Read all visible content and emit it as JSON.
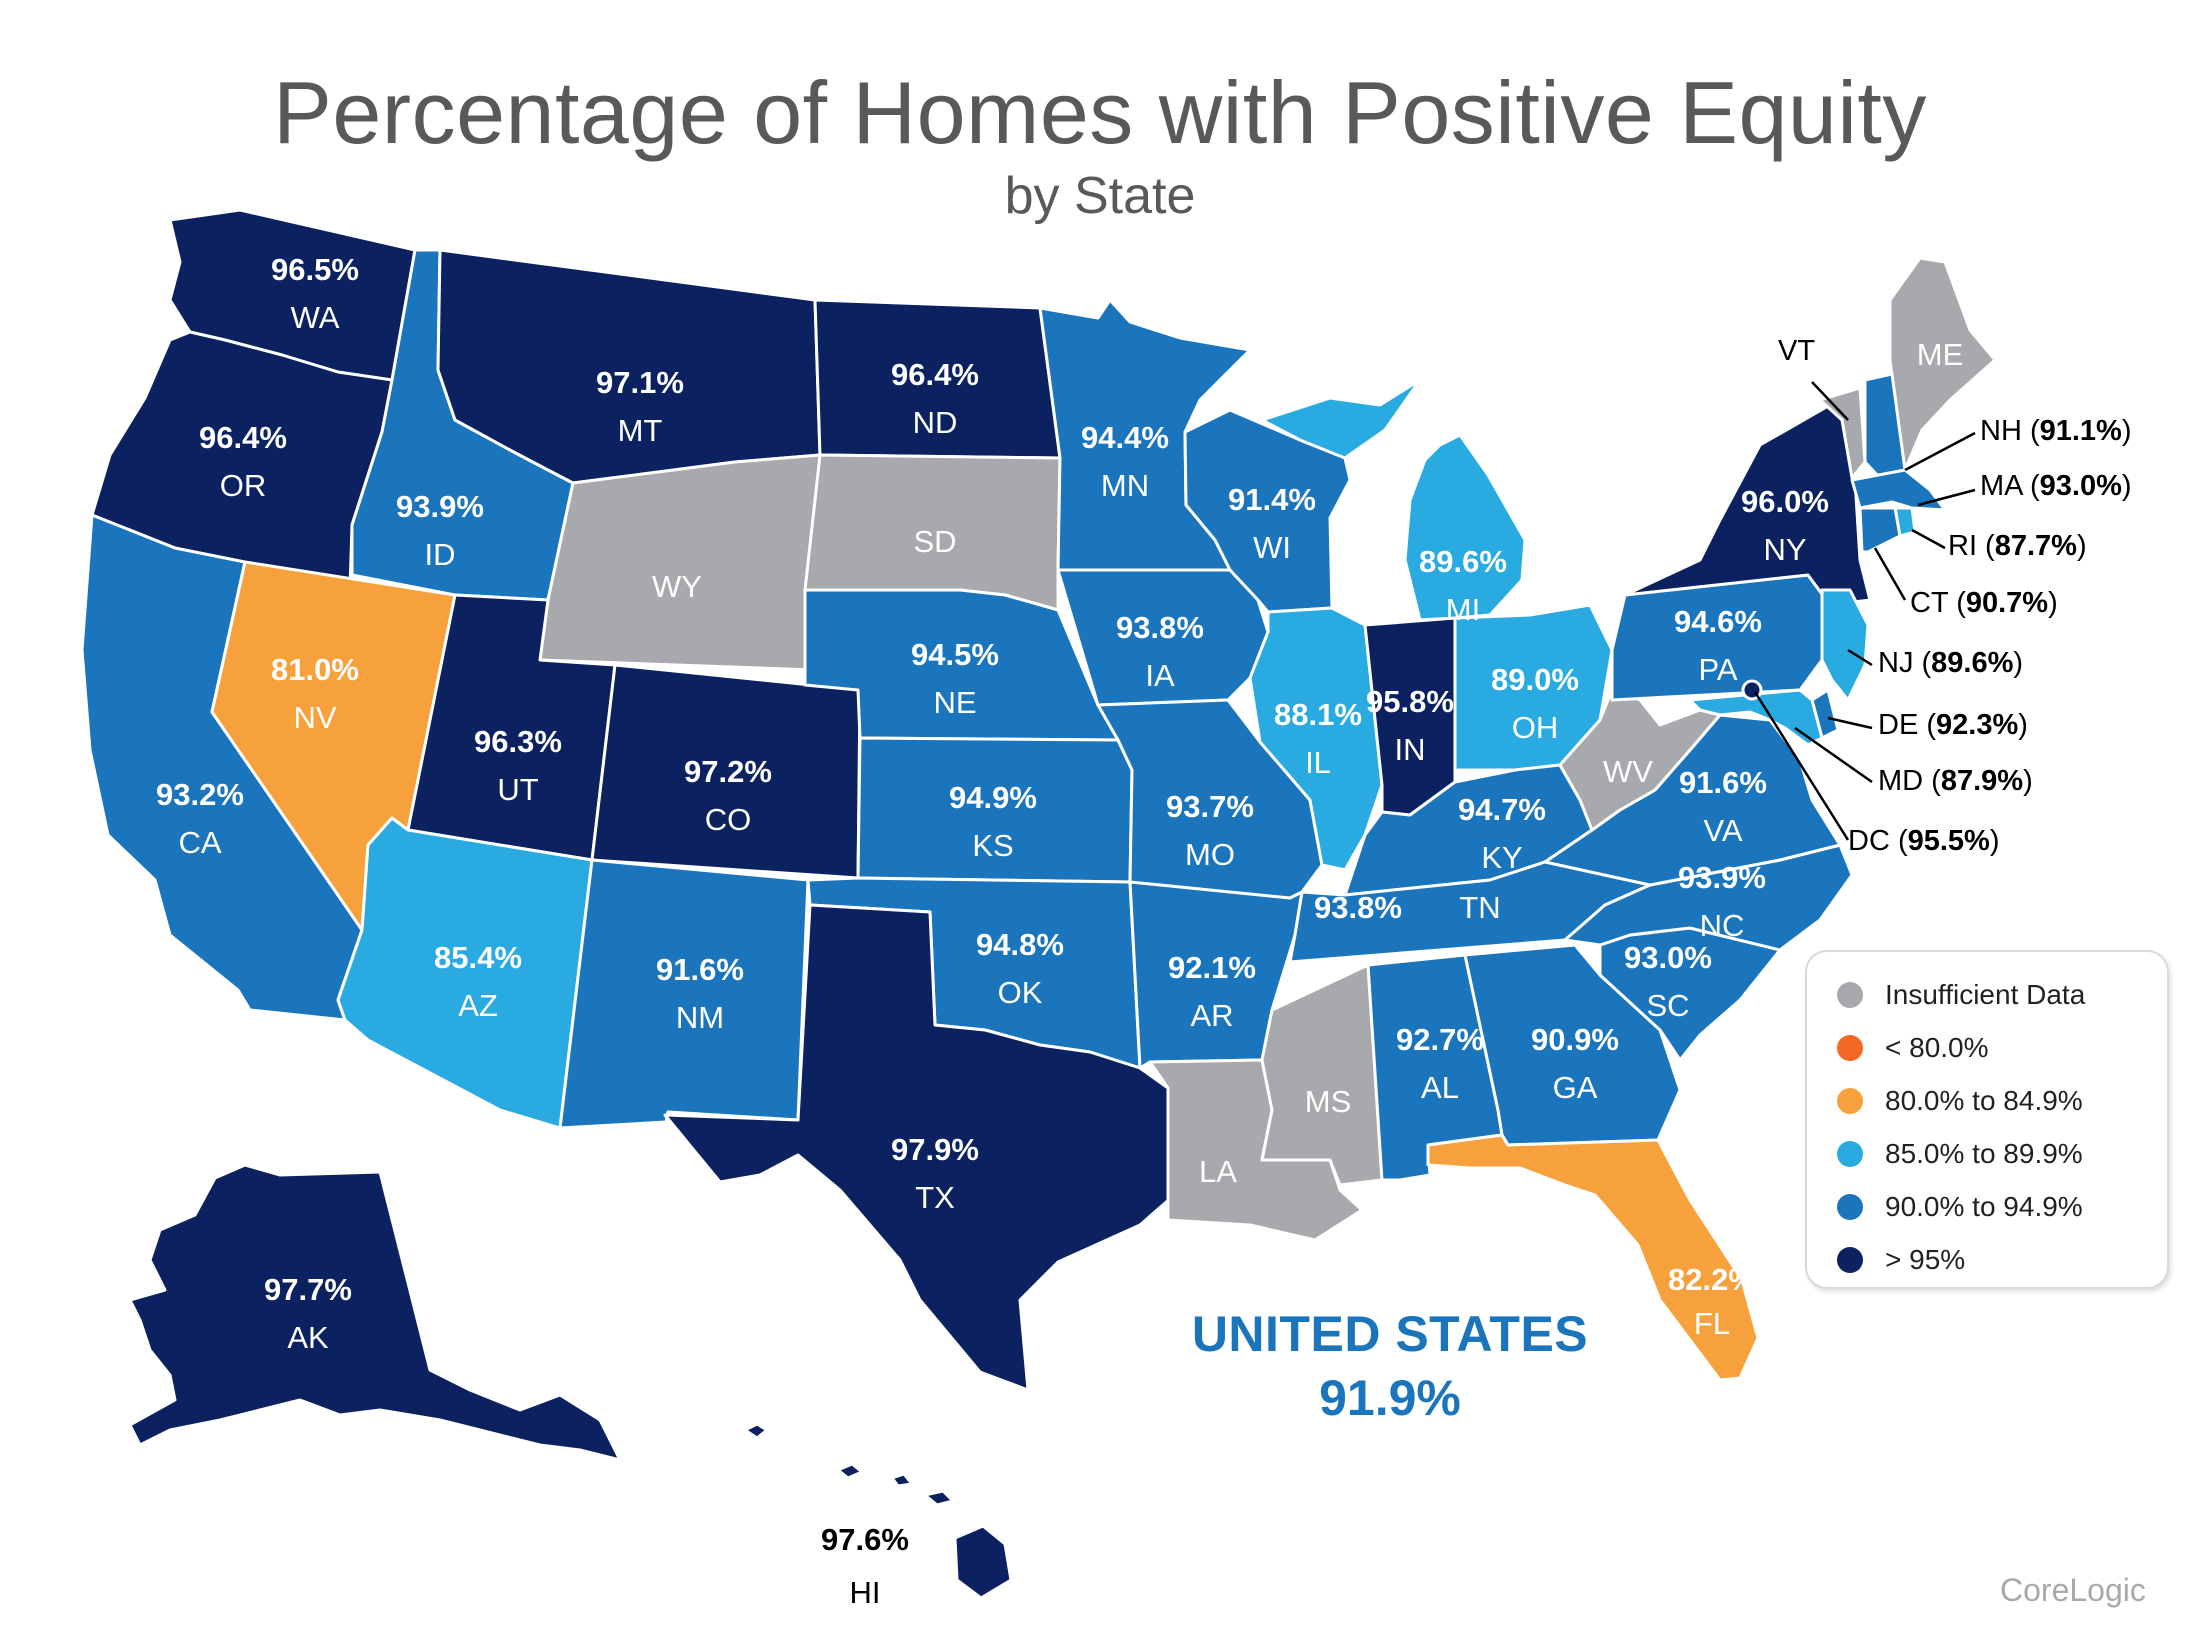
{
  "title": "Percentage of Homes with Positive Equity",
  "subtitle": "by State",
  "colors": {
    "insufficient": "#a7a9ac",
    "lt80": "#f26722",
    "r80_85": "#f7a13c",
    "r85_90": "#29aae1",
    "r90_95": "#1b75bc",
    "gt95": "#0b2160"
  },
  "legend": {
    "items": [
      {
        "label": "Insufficient Data",
        "color": "#a7a9ac"
      },
      {
        "label": "< 80.0%",
        "color": "#f26722"
      },
      {
        "label": "80.0% to 84.9%",
        "color": "#f7a13c"
      },
      {
        "label": "85.0% to 89.9%",
        "color": "#29aae1"
      },
      {
        "label": "90.0% to 94.9%",
        "color": "#1b75bc"
      },
      {
        "label": "> 95%",
        "color": "#0b2160"
      }
    ]
  },
  "states": {
    "WA": {
      "code": "WA",
      "value": "96.5%",
      "color": "#0b2160"
    },
    "OR": {
      "code": "OR",
      "value": "96.4%",
      "color": "#0b2160"
    },
    "CA": {
      "code": "CA",
      "value": "93.2%",
      "color": "#1b75bc"
    },
    "NV": {
      "code": "NV",
      "value": "81.0%",
      "color": "#f7a13c"
    },
    "ID": {
      "code": "ID",
      "value": "93.9%",
      "color": "#1b75bc"
    },
    "MT": {
      "code": "MT",
      "value": "97.1%",
      "color": "#0b2160"
    },
    "WY": {
      "code": "WY",
      "value": "",
      "color": "#a7a9ac"
    },
    "UT": {
      "code": "UT",
      "value": "96.3%",
      "color": "#0b2160"
    },
    "AZ": {
      "code": "AZ",
      "value": "85.4%",
      "color": "#29aae1"
    },
    "CO": {
      "code": "CO",
      "value": "97.2%",
      "color": "#0b2160"
    },
    "NM": {
      "code": "NM",
      "value": "91.6%",
      "color": "#1b75bc"
    },
    "ND": {
      "code": "ND",
      "value": "96.4%",
      "color": "#0b2160"
    },
    "SD": {
      "code": "SD",
      "value": "",
      "color": "#a7a9ac"
    },
    "NE": {
      "code": "NE",
      "value": "94.5%",
      "color": "#1b75bc"
    },
    "KS": {
      "code": "KS",
      "value": "94.9%",
      "color": "#1b75bc"
    },
    "OK": {
      "code": "OK",
      "value": "94.8%",
      "color": "#1b75bc"
    },
    "TX": {
      "code": "TX",
      "value": "97.9%",
      "color": "#0b2160"
    },
    "MN": {
      "code": "MN",
      "value": "94.4%",
      "color": "#1b75bc"
    },
    "IA": {
      "code": "IA",
      "value": "93.8%",
      "color": "#1b75bc"
    },
    "MO": {
      "code": "MO",
      "value": "93.7%",
      "color": "#1b75bc"
    },
    "AR": {
      "code": "AR",
      "value": "92.1%",
      "color": "#1b75bc"
    },
    "LA": {
      "code": "LA",
      "value": "",
      "color": "#a7a9ac"
    },
    "WI": {
      "code": "WI",
      "value": "91.4%",
      "color": "#1b75bc"
    },
    "IL": {
      "code": "IL",
      "value": "88.1%",
      "color": "#29aae1"
    },
    "MS": {
      "code": "MS",
      "value": "",
      "color": "#a7a9ac"
    },
    "MI": {
      "code": "MI",
      "value": "89.6%",
      "color": "#29aae1"
    },
    "IN": {
      "code": "IN",
      "value": "95.8%",
      "color": "#0b2160"
    },
    "OH": {
      "code": "OH",
      "value": "89.0%",
      "color": "#29aae1"
    },
    "KY": {
      "code": "KY",
      "value": "94.7%",
      "color": "#1b75bc"
    },
    "TN": {
      "code": "TN",
      "value": "93.8%",
      "color": "#1b75bc"
    },
    "AL": {
      "code": "AL",
      "value": "92.7%",
      "color": "#1b75bc"
    },
    "GA": {
      "code": "GA",
      "value": "90.9%",
      "color": "#1b75bc"
    },
    "FL": {
      "code": "FL",
      "value": "82.2%",
      "color": "#f7a13c"
    },
    "SC": {
      "code": "SC",
      "value": "93.0%",
      "color": "#1b75bc"
    },
    "NC": {
      "code": "NC",
      "value": "93.9%",
      "color": "#1b75bc"
    },
    "VA": {
      "code": "VA",
      "value": "91.6%",
      "color": "#1b75bc"
    },
    "WV": {
      "code": "WV",
      "value": "",
      "color": "#a7a9ac"
    },
    "PA": {
      "code": "PA",
      "value": "94.6%",
      "color": "#1b75bc"
    },
    "NY": {
      "code": "NY",
      "value": "96.0%",
      "color": "#0b2160"
    },
    "VT": {
      "code": "VT",
      "value": "",
      "color": "#a7a9ac"
    },
    "ME": {
      "code": "ME",
      "value": "",
      "color": "#a7a9ac"
    },
    "NH": {
      "code": "NH",
      "value": "91.1%",
      "color": "#1b75bc"
    },
    "MA": {
      "code": "MA",
      "value": "93.0%",
      "color": "#1b75bc"
    },
    "RI": {
      "code": "RI",
      "value": "87.7%",
      "color": "#29aae1"
    },
    "CT": {
      "code": "CT",
      "value": "90.7%",
      "color": "#1b75bc"
    },
    "NJ": {
      "code": "NJ",
      "value": "89.6%",
      "color": "#29aae1"
    },
    "DE": {
      "code": "DE",
      "value": "92.3%",
      "color": "#1b75bc"
    },
    "MD": {
      "code": "MD",
      "value": "87.9%",
      "color": "#29aae1"
    },
    "DC": {
      "code": "DC",
      "value": "95.5%",
      "color": "#0b2160"
    },
    "AK": {
      "code": "AK",
      "value": "97.7%",
      "color": "#0b2160"
    },
    "HI": {
      "code": "HI",
      "value": "97.6%",
      "color": "#0b2160"
    }
  },
  "us_total": {
    "label": "UNITED STATES",
    "value": "91.9%"
  },
  "source": "CoreLogic"
}
